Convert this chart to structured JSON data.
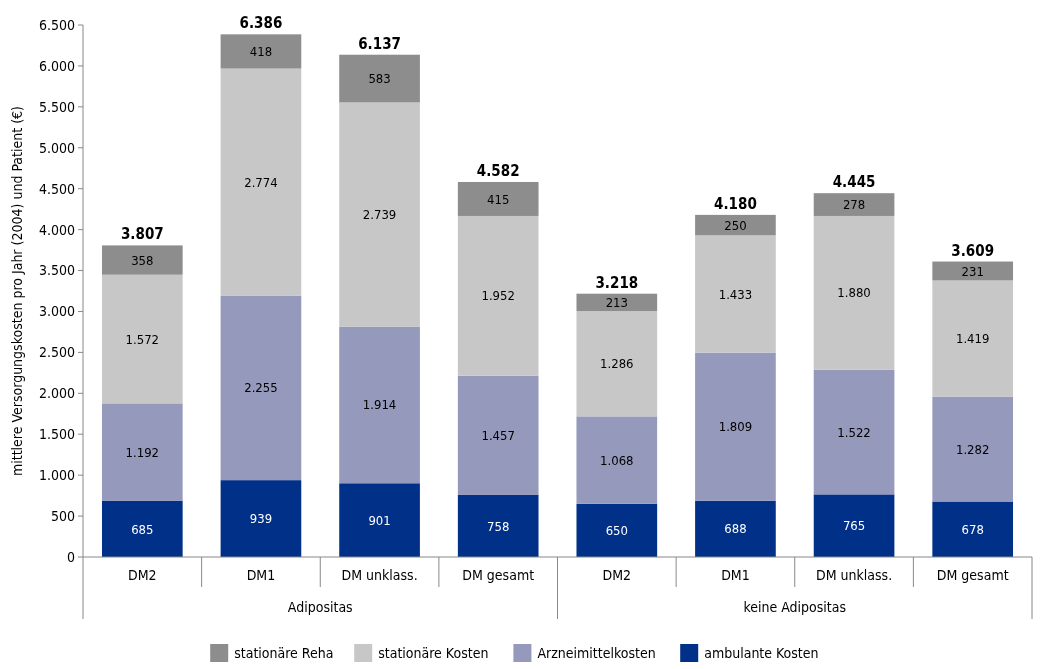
{
  "chart_data": {
    "type": "bar",
    "stacked": true,
    "ylabel": "mittlere Versorgungskosten pro Jahr (2004) und Patient (€)",
    "categories": [
      "DM2",
      "DM1",
      "DM unklass.",
      "DM gesamt",
      "DM2",
      "DM1",
      "DM unklass.",
      "DM gesamt"
    ],
    "annotations": [
      "Adipositas",
      "keine Adipositas"
    ],
    "series": [
      {
        "name": "ambulante Kosten",
        "color": "#003087",
        "values": [
          685,
          939,
          901,
          758,
          650,
          688,
          765,
          678
        ],
        "value_labels": [
          "685",
          "939",
          "901",
          "758",
          "650",
          "688",
          "765",
          "678"
        ]
      },
      {
        "name": "Arzneimittelkosten",
        "color": "#9599bb",
        "values": [
          1192,
          2255,
          1914,
          1457,
          1068,
          1809,
          1522,
          1282
        ],
        "value_labels": [
          "1.192",
          "2.255",
          "1.914",
          "1.457",
          "1.068",
          "1.809",
          "1.522",
          "1.282"
        ]
      },
      {
        "name": "stationäre Kosten",
        "color": "#c6c7c6",
        "values": [
          1572,
          2774,
          2739,
          1952,
          1286,
          1433,
          1880,
          1419
        ],
        "value_labels": [
          "1.572",
          "2.774",
          "2.739",
          "1.952",
          "1.286",
          "1.433",
          "1.880",
          "1.419"
        ]
      },
      {
        "name": "stationäre Reha",
        "color": "#8d8d8d",
        "values": [
          358,
          418,
          583,
          415,
          213,
          250,
          278,
          231
        ],
        "value_labels": [
          "358",
          "418",
          "583",
          "415",
          "213",
          "250",
          "278",
          "231"
        ]
      }
    ],
    "totals": [
      "3.807",
      "6.386",
      "6.137",
      "4.582",
      "3.218",
      "4.180",
      "4.445",
      "3.609"
    ],
    "ylim": [
      0,
      6500
    ],
    "yticks": [
      0,
      {
        "value": 500,
        "label": "500"
      },
      {
        "value": 1000,
        "label": "1.000"
      },
      {
        "value": 1500,
        "label": "1.500"
      },
      {
        "value": 2000,
        "label": "2.000"
      },
      {
        "value": 2500,
        "label": "2.500"
      },
      {
        "value": 3000,
        "label": "3.000"
      },
      {
        "value": 3500,
        "label": "3.500"
      },
      {
        "value": 4000,
        "label": "4.000"
      },
      {
        "value": 4500,
        "label": "4.500"
      },
      {
        "value": 5000,
        "label": "5.000"
      },
      {
        "value": 5500,
        "label": "5.500"
      },
      {
        "value": 6000,
        "label": "6.000"
      },
      {
        "value": 6500,
        "label": "6.500"
      }
    ],
    "grid": false,
    "legend": "bottom"
  }
}
